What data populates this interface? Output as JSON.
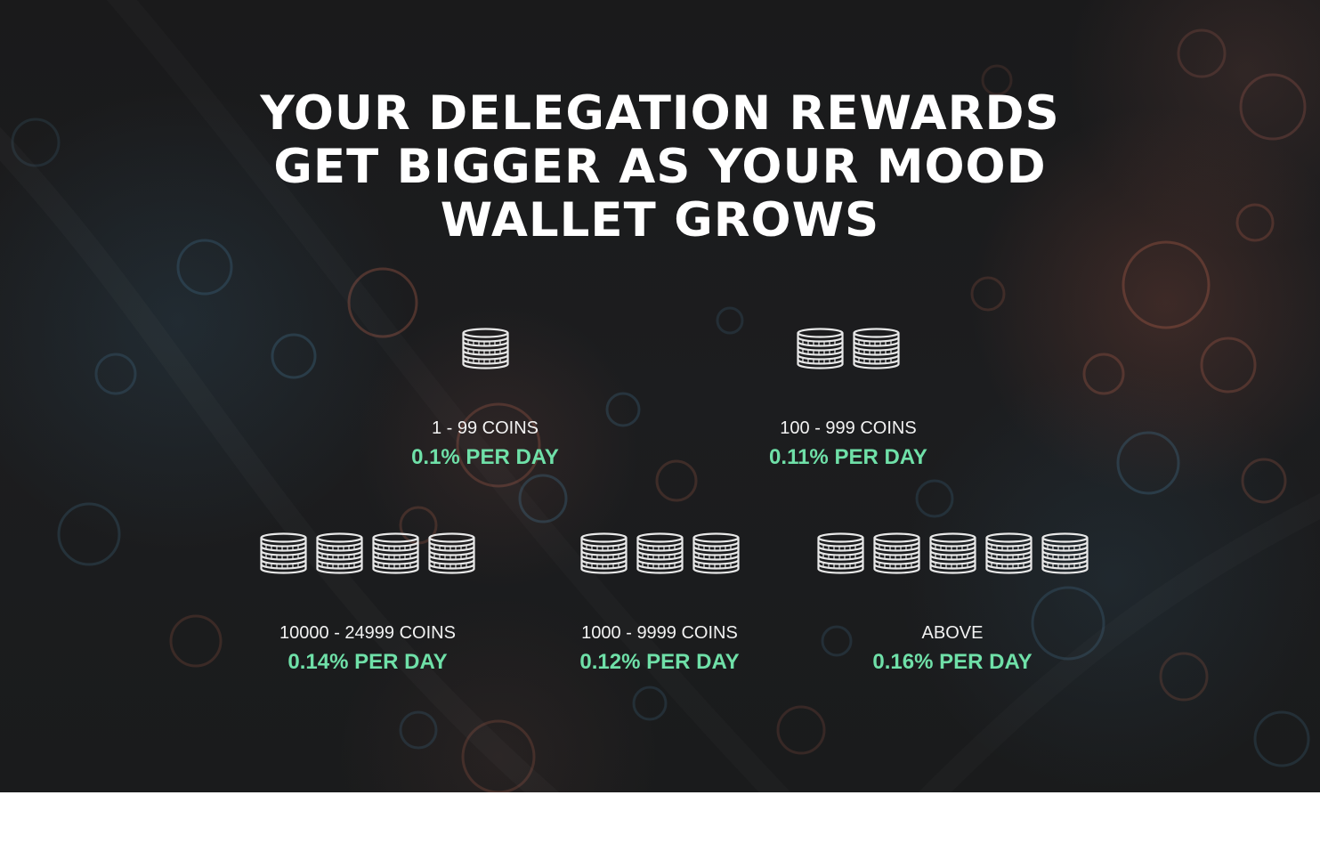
{
  "headline": {
    "line1": "YOUR DELEGATION REWARDS",
    "line2": "GET BIGGER AS YOUR MOOD",
    "line3": "WALLET GROWS"
  },
  "tiers": [
    {
      "range": "1 - 99 COINS",
      "rate": "0.1% PER DAY",
      "coin_stacks": 1
    },
    {
      "range": "100 - 999 COINS",
      "rate": "0.11% PER DAY",
      "coin_stacks": 2
    },
    {
      "range": "10000 - 24999 COINS",
      "rate": "0.14% PER DAY",
      "coin_stacks": 4
    },
    {
      "range": "1000 - 9999 COINS",
      "rate": "0.12% PER DAY",
      "coin_stacks": 3
    },
    {
      "range": "ABOVE",
      "rate": "0.16% PER DAY",
      "coin_stacks": 5
    }
  ],
  "colors": {
    "background": "#1b1c1e",
    "headline": "#ffffff",
    "range_text": "#f2f2f2",
    "rate_text": "#6fe0a8",
    "footer": "#ffffff"
  },
  "icons": {
    "coin_stack": "coin-stack-icon"
  }
}
